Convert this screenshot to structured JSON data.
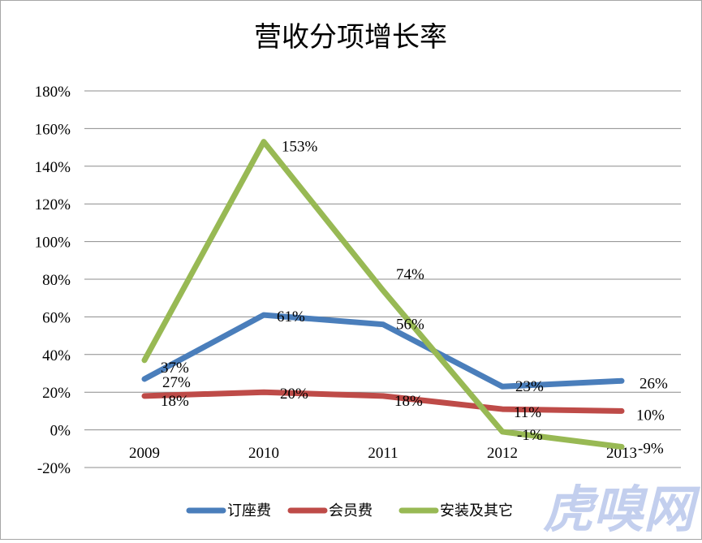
{
  "chart_data": {
    "type": "line",
    "title": "营收分项增长率",
    "categories": [
      "2009",
      "2010",
      "2011",
      "2012",
      "2013"
    ],
    "ylim": [
      -20,
      180
    ],
    "yticks": [
      "-20%",
      "0%",
      "20%",
      "40%",
      "60%",
      "80%",
      "100%",
      "120%",
      "140%",
      "160%",
      "180%"
    ],
    "ytick_values": [
      -20,
      0,
      20,
      40,
      60,
      80,
      100,
      120,
      140,
      160,
      180
    ],
    "grid": true,
    "legend_position": "bottom",
    "series": [
      {
        "name": "订座费",
        "color": "#4a7ebb",
        "values": [
          27,
          61,
          56,
          23,
          26
        ],
        "labels": [
          "27%",
          "61%",
          "56%",
          "23%",
          "26%"
        ]
      },
      {
        "name": "会员费",
        "color": "#be4b48",
        "values": [
          18,
          20,
          18,
          11,
          10
        ],
        "labels": [
          "18%",
          "20%",
          "18%",
          "11%",
          "10%"
        ]
      },
      {
        "name": "安装及其它",
        "color": "#98b954",
        "values": [
          37,
          153,
          74,
          -1,
          -9
        ],
        "labels": [
          "37%",
          "153%",
          "74%",
          "-1%",
          "-9%"
        ]
      }
    ]
  },
  "watermark": "虎嗅网"
}
